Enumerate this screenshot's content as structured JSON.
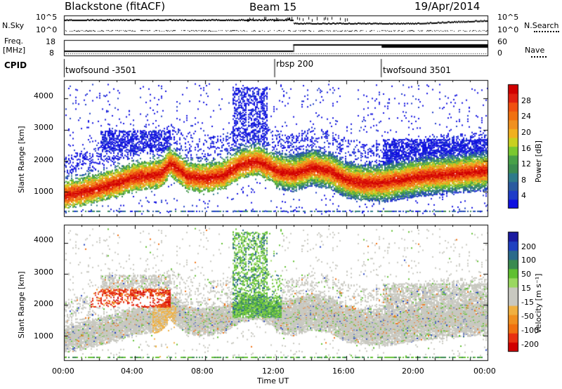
{
  "header": {
    "radar": "Blackstone (fitACF)",
    "beam": "Beam 15",
    "date": "19/Apr/2014"
  },
  "left_labels": {
    "nsky": "N.Sky",
    "freq": "Freq.",
    "freq_unit": "[MHz]",
    "cpid": "CPID"
  },
  "right_labels": {
    "nsearch": "N.Search",
    "nave": "Nave"
  },
  "noise_axis": {
    "left": [
      "10^5",
      "10^0"
    ],
    "right": [
      "10^5",
      "10^0"
    ]
  },
  "freq_axis": {
    "left": [
      "18",
      "8"
    ],
    "right": [
      "60",
      "0"
    ]
  },
  "cpid_segments": [
    {
      "label": "twofsound -3501",
      "start_hour": 0.0
    },
    {
      "label": "rbsp 200",
      "start_hour": 12.0
    },
    {
      "label": "twofsound 3501",
      "start_hour": 18.0
    }
  ],
  "colorbars": {
    "power": {
      "label": "Power [dB]",
      "ticks": [
        "4",
        "8",
        "12",
        "16",
        "20",
        "24",
        "28"
      ],
      "colors": [
        "#1010e0",
        "#1e3cc8",
        "#2a5aa0",
        "#2e7a8a",
        "#3c8c50",
        "#48a048",
        "#7ac830",
        "#c8d020",
        "#f0b020",
        "#f09020",
        "#f07010",
        "#f05010",
        "#e02010",
        "#d00000"
      ]
    },
    "velocity": {
      "label": "Velocity [m s⁻¹]",
      "ticks": [
        "200",
        "100",
        "50",
        "15",
        "-15",
        "-50",
        "-100",
        "-200"
      ],
      "colors": [
        "#1a1aa0",
        "#2040c0",
        "#2a6a8a",
        "#3a8a50",
        "#60c030",
        "#9ad860",
        "#c8c8c0",
        "#c8c8c0",
        "#f0b040",
        "#f09020",
        "#f07010",
        "#e83010",
        "#d00000"
      ]
    }
  },
  "chart_data": [
    {
      "type": "heatmap",
      "title": "Beam 15",
      "variable": "Power",
      "colorbar_label": "Power [dB]",
      "colorbar_ticks": [
        4,
        8,
        12,
        16,
        20,
        24,
        28
      ],
      "ylabel": "Slant Range [km]",
      "ylim": [
        200,
        4600
      ],
      "y_ticks": [
        1000,
        2000,
        3000,
        4000
      ],
      "xlabel": "",
      "xlim_hours": [
        0,
        24
      ],
      "x_ticks": [
        "00:00",
        "04:00",
        "08:00",
        "12:00",
        "16:00",
        "20:00",
        "00:00"
      ],
      "main_band_km": [
        [
          0,
          900
        ],
        [
          1,
          1000
        ],
        [
          2,
          1150
        ],
        [
          3,
          1300
        ],
        [
          4,
          1500
        ],
        [
          5,
          1550
        ],
        [
          5.5,
          1600
        ],
        [
          6,
          1950
        ],
        [
          7,
          1500
        ],
        [
          8,
          1450
        ],
        [
          9,
          1550
        ],
        [
          10,
          1900
        ],
        [
          11,
          2000
        ],
        [
          12,
          1700
        ],
        [
          13,
          1600
        ],
        [
          14,
          1800
        ],
        [
          15,
          1700
        ],
        [
          16,
          1400
        ],
        [
          17,
          1300
        ],
        [
          18,
          1300
        ],
        [
          19,
          1400
        ],
        [
          20,
          1500
        ],
        [
          21,
          1550
        ],
        [
          22,
          1600
        ],
        [
          23,
          1650
        ],
        [
          24,
          1700
        ]
      ]
    },
    {
      "type": "heatmap",
      "variable": "Velocity",
      "colorbar_label": "Velocity [m s⁻¹]",
      "colorbar_ticks": [
        200,
        100,
        50,
        15,
        -15,
        -50,
        -100,
        -200
      ],
      "ylabel": "Slant Range [km]",
      "ylim": [
        200,
        4600
      ],
      "y_ticks": [
        1000,
        2000,
        3000,
        4000
      ],
      "xlabel": "Time UT",
      "xlim_hours": [
        0,
        24
      ],
      "x_ticks": [
        "00:00",
        "04:00",
        "08:00",
        "12:00",
        "16:00",
        "20:00",
        "00:00"
      ],
      "red_band_km": [
        [
          4.0,
          2200
        ],
        [
          5.0,
          2100
        ],
        [
          5.5,
          2050
        ]
      ],
      "orange_band_km": [
        [
          2.0,
          2300
        ],
        [
          3.0,
          2400
        ],
        [
          4.0,
          2300
        ]
      ]
    }
  ],
  "axis_titles": {
    "ylabel_top": "Slant Range [km]",
    "ylabel_bottom": "Slant Range [km]",
    "xlabel": "Time UT"
  },
  "x_ticks": [
    "00:00",
    "04:00",
    "08:00",
    "12:00",
    "16:00",
    "20:00",
    "00:00"
  ],
  "y_ticks": [
    "1000",
    "2000",
    "3000",
    "4000"
  ]
}
